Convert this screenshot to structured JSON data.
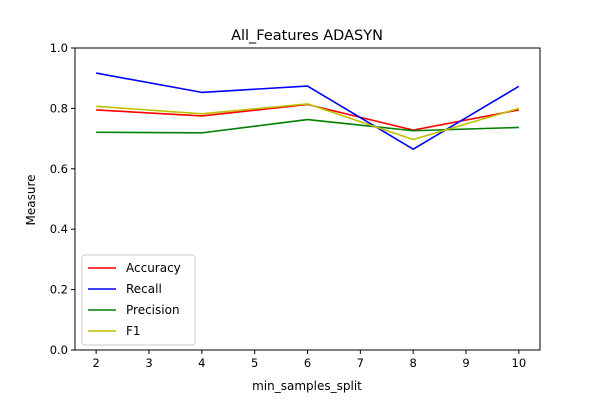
{
  "chart_data": {
    "type": "line",
    "title": "All_Features ADASYN",
    "xlabel": "min_samples_split",
    "ylabel": "Measure",
    "x": [
      2,
      4,
      6,
      8,
      10
    ],
    "xlim": [
      1.6,
      10.4
    ],
    "xticks": [
      "2",
      "3",
      "4",
      "5",
      "6",
      "7",
      "8",
      "9",
      "10"
    ],
    "ylim": [
      0.0,
      1.0
    ],
    "yticks": [
      "0.0",
      "0.2",
      "0.4",
      "0.6",
      "0.8",
      "1.0"
    ],
    "grid": false,
    "legend_position": "lower-left",
    "series": [
      {
        "name": "Accuracy",
        "color": "#ff0000",
        "values": [
          0.795,
          0.775,
          0.813,
          0.728,
          0.795
        ]
      },
      {
        "name": "Recall",
        "color": "#0000ff",
        "values": [
          0.917,
          0.853,
          0.874,
          0.665,
          0.873
        ]
      },
      {
        "name": "Precision",
        "color": "#008000",
        "values": [
          0.721,
          0.719,
          0.763,
          0.726,
          0.737
        ]
      },
      {
        "name": "F1",
        "color": "#bfbf00",
        "values": [
          0.807,
          0.782,
          0.815,
          0.697,
          0.8
        ]
      }
    ]
  }
}
